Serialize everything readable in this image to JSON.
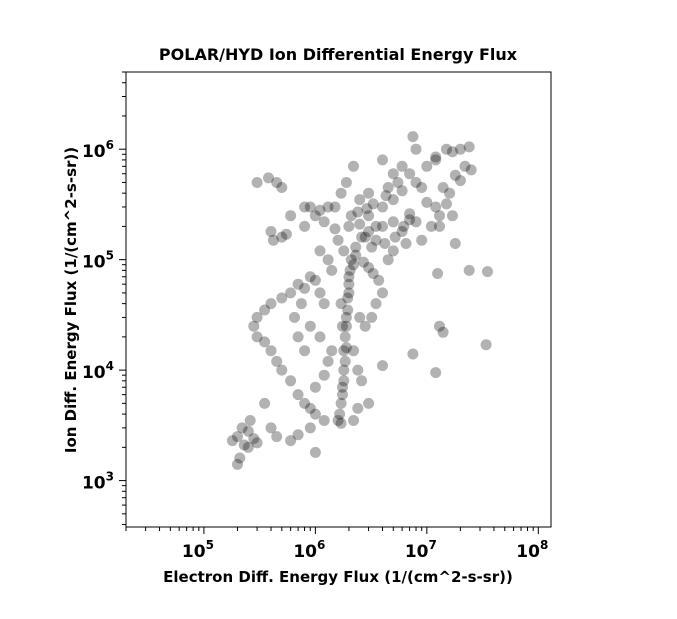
{
  "chart_data": {
    "type": "scatter",
    "title": "POLAR/HYD  Ion Differential Energy Flux",
    "xlabel": "Electron Diff. Energy Flux (1/(cm^2-s-sr))",
    "ylabel": "Ion Diff. Energy Flux (1/(cm^2-s-sr))",
    "xscale": "log",
    "yscale": "log",
    "xlim": [
      20000,
      130000000
    ],
    "ylim": [
      380,
      5000000
    ],
    "xticks": [
      {
        "value": 100000,
        "base": "10",
        "exp": "5"
      },
      {
        "value": 1000000,
        "base": "10",
        "exp": "6"
      },
      {
        "value": 10000000,
        "base": "10",
        "exp": "7"
      },
      {
        "value": 100000000,
        "base": "10",
        "exp": "8"
      }
    ],
    "yticks": [
      {
        "value": 1000,
        "base": "10",
        "exp": "3"
      },
      {
        "value": 10000,
        "base": "10",
        "exp": "4"
      },
      {
        "value": 100000,
        "base": "10",
        "exp": "5"
      },
      {
        "value": 1000000,
        "base": "10",
        "exp": "6"
      }
    ],
    "grid": false,
    "marker_color": "#000000",
    "marker_alpha": 0.3,
    "series": [
      {
        "points": [
          [
            1700000,
            3300
          ],
          [
            1650000,
            4000
          ],
          [
            1700000,
            5000
          ],
          [
            1750000,
            7000
          ],
          [
            1800000,
            10000
          ],
          [
            1800000,
            15000
          ],
          [
            1850000,
            20000
          ],
          [
            1900000,
            30000
          ],
          [
            1950000,
            45000
          ],
          [
            2000000,
            60000
          ],
          [
            2050000,
            80000
          ],
          [
            2100000,
            100000
          ],
          [
            2300000,
            130000
          ],
          [
            2600000,
            160000
          ],
          [
            3000000,
            180000
          ],
          [
            4000000,
            200000
          ],
          [
            5000000,
            220000
          ],
          [
            7000000,
            260000
          ],
          [
            10000000,
            330000
          ],
          [
            14000000,
            450000
          ],
          [
            18000000,
            580000
          ],
          [
            22000000,
            700000
          ],
          [
            1600000,
            3500
          ],
          [
            1750000,
            6000
          ],
          [
            1850000,
            12000
          ],
          [
            1900000,
            25000
          ],
          [
            2000000,
            50000
          ],
          [
            2200000,
            90000
          ],
          [
            3500000,
            150000
          ],
          [
            6000000,
            180000
          ],
          [
            8000000,
            220000
          ],
          [
            12000000,
            300000
          ],
          [
            16000000,
            400000
          ],
          [
            20000000,
            520000
          ],
          [
            25000000,
            650000
          ],
          [
            5000000,
            120000
          ],
          [
            4500000,
            100000
          ],
          [
            6500000,
            140000
          ],
          [
            3000000,
            250000
          ],
          [
            4000000,
            300000
          ],
          [
            5000000,
            350000
          ],
          [
            6000000,
            420000
          ],
          [
            8000000,
            500000
          ],
          [
            3500000,
            200000
          ],
          [
            2500000,
            210000
          ],
          [
            2000000,
            200000
          ],
          [
            1500000,
            190000
          ],
          [
            1200000,
            220000
          ],
          [
            1000000,
            250000
          ],
          [
            800000,
            200000
          ],
          [
            9000000,
            150000
          ],
          [
            11000000,
            200000
          ],
          [
            13000000,
            250000
          ],
          [
            15000000,
            320000
          ],
          [
            7000000,
            600000
          ],
          [
            5500000,
            500000
          ],
          [
            4500000,
            450000
          ],
          [
            3000000,
            400000
          ],
          [
            2500000,
            350000
          ],
          [
            10000000,
            700000
          ],
          [
            12000000,
            800000
          ],
          [
            20000000,
            1000000
          ],
          [
            24000000,
            1050000
          ],
          [
            8000000,
            1000000
          ],
          [
            4000000,
            800000
          ],
          [
            7500000,
            1300000
          ],
          [
            12000000,
            850000
          ],
          [
            17000000,
            950000
          ],
          [
            300000,
            500000
          ],
          [
            380000,
            550000
          ],
          [
            450000,
            500000
          ],
          [
            500000,
            450000
          ],
          [
            400000,
            180000
          ],
          [
            420000,
            150000
          ],
          [
            500000,
            160000
          ],
          [
            550000,
            170000
          ],
          [
            600000,
            250000
          ],
          [
            800000,
            300000
          ],
          [
            900000,
            300000
          ],
          [
            1100000,
            280000
          ],
          [
            1300000,
            300000
          ],
          [
            1500000,
            300000
          ],
          [
            700000,
            60000
          ],
          [
            600000,
            50000
          ],
          [
            500000,
            45000
          ],
          [
            800000,
            55000
          ],
          [
            900000,
            70000
          ],
          [
            1000000,
            65000
          ],
          [
            1100000,
            50000
          ],
          [
            1200000,
            40000
          ],
          [
            400000,
            40000
          ],
          [
            350000,
            35000
          ],
          [
            300000,
            30000
          ],
          [
            280000,
            25000
          ],
          [
            300000,
            20000
          ],
          [
            350000,
            18000
          ],
          [
            400000,
            15000
          ],
          [
            450000,
            12000
          ],
          [
            500000,
            10000
          ],
          [
            600000,
            8000
          ],
          [
            700000,
            6000
          ],
          [
            800000,
            5000
          ],
          [
            900000,
            4500
          ],
          [
            1000000,
            4000
          ],
          [
            1200000,
            3500
          ],
          [
            200000,
            2500
          ],
          [
            220000,
            3000
          ],
          [
            250000,
            2800
          ],
          [
            280000,
            2400
          ],
          [
            300000,
            2200
          ],
          [
            250000,
            2000
          ],
          [
            200000,
            1400
          ],
          [
            210000,
            1600
          ],
          [
            230000,
            2100
          ],
          [
            180000,
            2300
          ],
          [
            260000,
            3500
          ],
          [
            350000,
            5000
          ],
          [
            400000,
            3000
          ],
          [
            450000,
            2500
          ],
          [
            600000,
            2300
          ],
          [
            700000,
            2600
          ],
          [
            900000,
            3000
          ],
          [
            1000000,
            1800
          ],
          [
            1000000,
            7000
          ],
          [
            1200000,
            9000
          ],
          [
            1300000,
            12000
          ],
          [
            1400000,
            15000
          ],
          [
            1100000,
            20000
          ],
          [
            900000,
            25000
          ],
          [
            800000,
            15000
          ],
          [
            700000,
            20000
          ],
          [
            650000,
            30000
          ],
          [
            750000,
            40000
          ],
          [
            1300000,
            100000
          ],
          [
            1100000,
            120000
          ],
          [
            1400000,
            80000
          ],
          [
            2500000,
            30000
          ],
          [
            2800000,
            25000
          ],
          [
            3200000,
            30000
          ],
          [
            3500000,
            40000
          ],
          [
            4000000,
            50000
          ],
          [
            2200000,
            15000
          ],
          [
            2400000,
            10000
          ],
          [
            2600000,
            8000
          ],
          [
            3000000,
            5000
          ],
          [
            2200000,
            3500
          ],
          [
            2400000,
            4500
          ],
          [
            4000000,
            11000
          ],
          [
            7500000,
            14000
          ],
          [
            12000000,
            9500
          ],
          [
            13000000,
            25000
          ],
          [
            14000000,
            22000
          ],
          [
            34000000,
            17000
          ],
          [
            12500000,
            75000
          ],
          [
            24000000,
            80000
          ],
          [
            35000000,
            78000
          ],
          [
            18000000,
            140000
          ],
          [
            17000000,
            250000
          ],
          [
            13000000,
            200000
          ],
          [
            9000000,
            450000
          ],
          [
            6000000,
            700000
          ],
          [
            5000000,
            600000
          ],
          [
            15000000,
            1000000
          ],
          [
            2200000,
            700000
          ],
          [
            1900000,
            500000
          ],
          [
            1700000,
            400000
          ],
          [
            1600000,
            150000
          ],
          [
            1800000,
            120000
          ],
          [
            2300000,
            110000
          ],
          [
            2700000,
            95000
          ],
          [
            3000000,
            85000
          ],
          [
            3300000,
            75000
          ],
          [
            3700000,
            65000
          ],
          [
            2800000,
            160000
          ],
          [
            3200000,
            130000
          ],
          [
            4200000,
            140000
          ],
          [
            5200000,
            160000
          ],
          [
            6200000,
            200000
          ],
          [
            7000000,
            230000
          ],
          [
            2100000,
            250000
          ],
          [
            2400000,
            270000
          ],
          [
            2900000,
            290000
          ],
          [
            3300000,
            320000
          ],
          [
            4300000,
            380000
          ],
          [
            1800000,
            8000
          ],
          [
            1900000,
            16000
          ],
          [
            1950000,
            35000
          ],
          [
            2000000,
            70000
          ],
          [
            1750000,
            25000
          ],
          [
            1700000,
            40000
          ]
        ]
      }
    ]
  }
}
